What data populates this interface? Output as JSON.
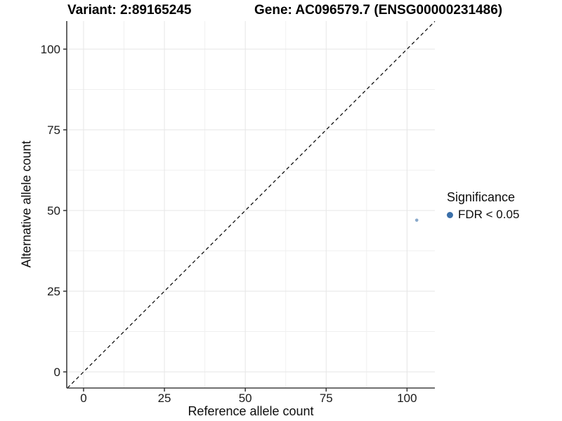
{
  "header": {
    "title_variant": "Variant: 2:89165245",
    "title_gene": "Gene: AC096579.7 (ENSG00000231486)"
  },
  "chart_data": {
    "type": "scatter",
    "title": "Variant: 2:89165245   Gene: AC096579.7 (ENSG00000231486)",
    "xlabel": "Reference allele count",
    "ylabel": "Alternative allele count",
    "xlim": [
      -5.2,
      108.6
    ],
    "ylim": [
      -5.0,
      108.7
    ],
    "x_ticks": [
      0,
      25,
      50,
      75,
      100
    ],
    "y_ticks": [
      0,
      25,
      50,
      75,
      100
    ],
    "x_minor_ticks": [
      12.5,
      37.5,
      62.5,
      87.5
    ],
    "y_minor_ticks": [
      12.5,
      37.5,
      62.5,
      87.5
    ],
    "grid": true,
    "series": [
      {
        "name": "FDR < 0.05",
        "points": [
          {
            "x": 103,
            "y": 47
          }
        ],
        "color": "#3b6fa9",
        "point_opacity": 0.6,
        "point_radius": 2.3
      }
    ],
    "reference_line": {
      "type": "identity",
      "slope": 1,
      "intercept": 0,
      "style": "dashed",
      "color": "#000000"
    },
    "legend": {
      "position": "right",
      "title": "Significance",
      "items": [
        {
          "label": "FDR < 0.05",
          "color": "#3b6fa9"
        }
      ]
    },
    "colors": {
      "axis_line": "#404040",
      "tick_mark": "#333333",
      "tick_label": "#1a1a1a",
      "grid_major": "#e6e6e6",
      "grid_minor": "#f0f0f0",
      "panel_background": "#ffffff"
    }
  }
}
